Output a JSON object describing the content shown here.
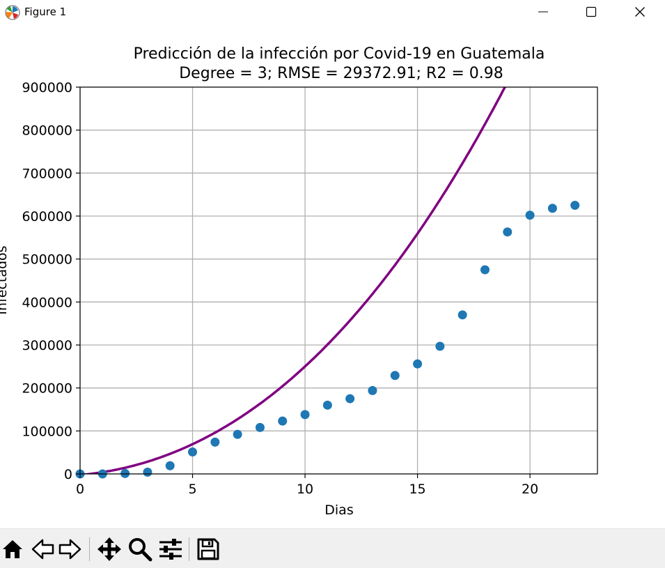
{
  "window": {
    "title": "Figure 1",
    "icon": "matplotlib-figure-icon",
    "controls": [
      "minimize-icon",
      "maximize-icon",
      "close-icon"
    ]
  },
  "toolbar": {
    "buttons": [
      "home-icon",
      "back-arrow-icon",
      "forward-arrow-icon",
      "pan-move-icon",
      "zoom-magnifier-icon",
      "subplots-config-icon",
      "save-floppy-icon"
    ]
  },
  "chart_data": {
    "type": "scatter",
    "title": "Predicción de la infección por Covid-19 en Guatemala",
    "subtitle": "Degree = 3; RMSE = 29372.91; R2 = 0.98",
    "xlabel": "Dias",
    "ylabel": "Infectados",
    "xlim": [
      0,
      23
    ],
    "ylim": [
      0,
      900000
    ],
    "xticks": [
      0,
      5,
      10,
      15,
      20
    ],
    "yticks": [
      0,
      100000,
      200000,
      300000,
      400000,
      500000,
      600000,
      700000,
      800000,
      900000
    ],
    "grid": true,
    "series": [
      {
        "kind": "scatter",
        "color": "#1f77b4",
        "x": [
          0,
          1,
          2,
          3,
          4,
          5,
          6,
          7,
          8,
          9,
          10,
          11,
          12,
          13,
          14,
          15,
          16,
          17,
          18,
          19,
          20,
          21,
          22
        ],
        "y": [
          0,
          0,
          1000,
          4000,
          19000,
          51000,
          74000,
          92000,
          108000,
          123000,
          138000,
          160000,
          175000,
          194000,
          229000,
          256000,
          297000,
          370000,
          475000,
          563000,
          602000,
          618000,
          625000
        ]
      },
      {
        "kind": "line",
        "color": "#800080",
        "polynomial_degree": 3,
        "coefficients": [
          -2500,
          4700,
          1800,
          25.5
        ]
      }
    ]
  }
}
